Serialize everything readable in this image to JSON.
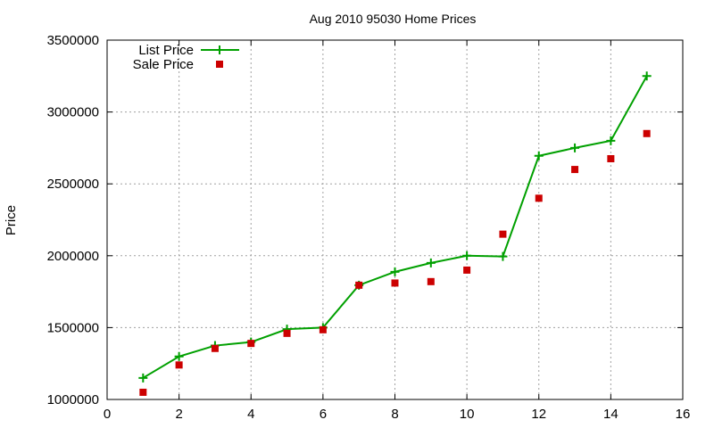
{
  "chart_data": {
    "type": "line",
    "title": "Aug 2010 95030 Home Prices",
    "xlabel": "",
    "ylabel": "Price",
    "xlim": [
      0,
      16
    ],
    "ylim": [
      1000000,
      3500000
    ],
    "xticks": [
      "0",
      "2",
      "4",
      "6",
      "8",
      "10",
      "12",
      "14",
      "16"
    ],
    "yticks": [
      "1000000",
      "1500000",
      "2000000",
      "2500000",
      "3000000",
      "3500000"
    ],
    "grid": true,
    "legend_position": "top-left",
    "series": [
      {
        "name": "List Price",
        "style": "line+cross",
        "color": "#00a000",
        "x": [
          1,
          2,
          3,
          4,
          5,
          6,
          7,
          8,
          9,
          10,
          11,
          12,
          13,
          14,
          15
        ],
        "y": [
          1150000,
          1299000,
          1375000,
          1399000,
          1489000,
          1500000,
          1795000,
          1888000,
          1950000,
          2000000,
          1995000,
          2695000,
          2750000,
          2800000,
          3250000
        ]
      },
      {
        "name": "Sale Price",
        "style": "points",
        "color": "#cc0000",
        "x": [
          1,
          2,
          3,
          4,
          5,
          6,
          7,
          8,
          9,
          10,
          11,
          12,
          13,
          14,
          15
        ],
        "y": [
          1050000,
          1240000,
          1355000,
          1390000,
          1460000,
          1485000,
          1795000,
          1810000,
          1820000,
          1900000,
          2150000,
          2400000,
          2600000,
          2675000,
          2850000
        ]
      }
    ]
  }
}
